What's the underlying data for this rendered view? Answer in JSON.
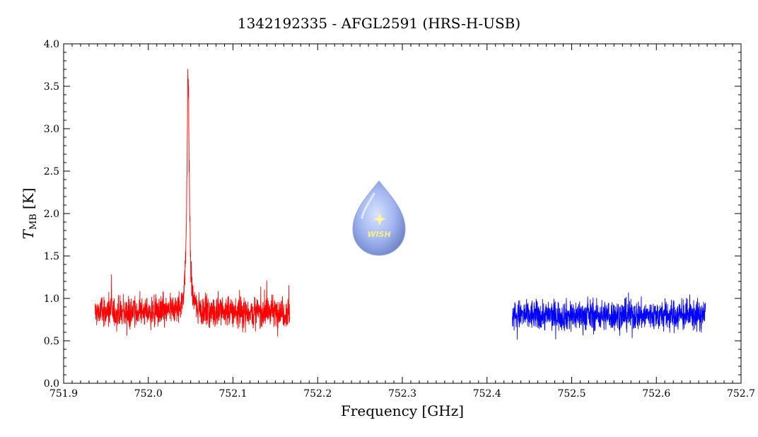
{
  "chart_data": {
    "type": "line",
    "title": "1342192335 - AFGL2591 (HRS-H-USB)",
    "xlabel": "Frequency [GHz]",
    "ylabel_symbol": "T",
    "ylabel_subscript": "MB",
    "ylabel_unit": "[K]",
    "xlim": [
      751.9,
      752.7
    ],
    "ylim": [
      0.0,
      4.0
    ],
    "x_ticks": [
      "751.9",
      "752.0",
      "752.1",
      "752.2",
      "752.3",
      "752.4",
      "752.5",
      "752.6",
      "752.7"
    ],
    "y_ticks": [
      "0.0",
      "0.5",
      "1.0",
      "1.5",
      "2.0",
      "2.5",
      "3.0",
      "3.5",
      "4.0"
    ],
    "grid": false,
    "logo_text": "WISH",
    "series": [
      {
        "color": "#ff0000",
        "x_start": 751.937,
        "x_end": 752.167,
        "baseline": 0.84,
        "noise_amplitude": 0.17,
        "peak": {
          "center": 752.047,
          "height": 3.78
        }
      },
      {
        "color": "#0000ff",
        "x_start": 752.43,
        "x_end": 752.658,
        "baseline": 0.8,
        "noise_amplitude": 0.16
      }
    ]
  }
}
